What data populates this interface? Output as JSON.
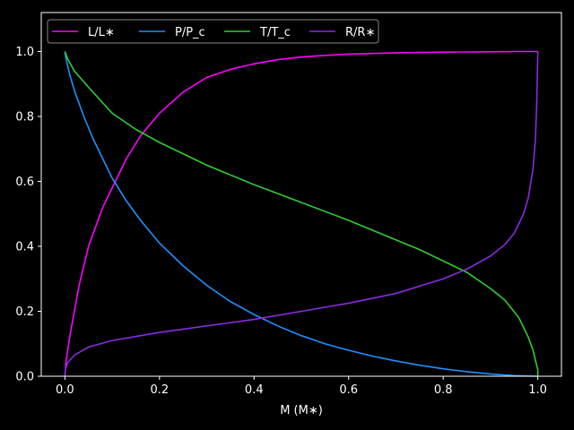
{
  "chart_data": {
    "type": "line",
    "title": "",
    "xlabel": "M (M∗)",
    "ylabel": "",
    "xlim": [
      -0.05,
      1.05
    ],
    "ylim": [
      0.0,
      1.12
    ],
    "xticks": [
      "0.0",
      "0.2",
      "0.4",
      "0.6",
      "0.8",
      "1.0"
    ],
    "yticks": [
      "0.0",
      "0.2",
      "0.4",
      "0.6",
      "0.8",
      "1.0"
    ],
    "grid": false,
    "legend_position": "top-left",
    "background": "#000000",
    "series": [
      {
        "name": "L/L∗",
        "color": "#ff00ff",
        "x": [
          0.0,
          0.002,
          0.01,
          0.03,
          0.05,
          0.08,
          0.1,
          0.13,
          0.16,
          0.2,
          0.25,
          0.3,
          0.35,
          0.4,
          0.45,
          0.5,
          0.55,
          0.6,
          0.7,
          0.8,
          0.9,
          0.95,
          0.98,
          1.0,
          1.0
        ],
        "y": [
          0.0,
          0.04,
          0.12,
          0.28,
          0.4,
          0.52,
          0.58,
          0.67,
          0.74,
          0.81,
          0.875,
          0.92,
          0.945,
          0.962,
          0.975,
          0.983,
          0.988,
          0.992,
          0.996,
          0.998,
          0.999,
          1.0,
          1.0,
          1.0,
          1.0
        ]
      },
      {
        "name": "P/P_c",
        "color": "#1e90ff",
        "x": [
          0.0,
          0.002,
          0.01,
          0.02,
          0.04,
          0.06,
          0.08,
          0.1,
          0.13,
          0.16,
          0.2,
          0.25,
          0.3,
          0.35,
          0.4,
          0.45,
          0.5,
          0.55,
          0.6,
          0.65,
          0.7,
          0.75,
          0.8,
          0.85,
          0.9,
          0.95,
          1.0
        ],
        "y": [
          1.0,
          0.98,
          0.93,
          0.88,
          0.8,
          0.73,
          0.67,
          0.61,
          0.54,
          0.48,
          0.41,
          0.34,
          0.28,
          0.23,
          0.19,
          0.155,
          0.125,
          0.1,
          0.08,
          0.062,
          0.047,
          0.034,
          0.023,
          0.014,
          0.007,
          0.002,
          0.0
        ]
      },
      {
        "name": "T/T_c",
        "color": "#32cd32",
        "x": [
          0.0,
          0.005,
          0.02,
          0.05,
          0.1,
          0.15,
          0.2,
          0.3,
          0.4,
          0.5,
          0.6,
          0.7,
          0.75,
          0.8,
          0.85,
          0.9,
          0.93,
          0.96,
          0.98,
          0.99,
          0.995,
          1.0,
          1.0
        ],
        "y": [
          1.0,
          0.98,
          0.94,
          0.89,
          0.81,
          0.76,
          0.72,
          0.65,
          0.59,
          0.535,
          0.48,
          0.42,
          0.39,
          0.355,
          0.32,
          0.27,
          0.235,
          0.18,
          0.12,
          0.08,
          0.05,
          0.02,
          0.0
        ]
      },
      {
        "name": "R/R∗",
        "color": "#8a2be2",
        "x": [
          0.0,
          0.001,
          0.005,
          0.02,
          0.05,
          0.1,
          0.2,
          0.3,
          0.4,
          0.5,
          0.6,
          0.7,
          0.8,
          0.85,
          0.9,
          0.93,
          0.95,
          0.97,
          0.98,
          0.99,
          0.995,
          0.998,
          1.0
        ],
        "y": [
          0.0,
          0.02,
          0.04,
          0.065,
          0.09,
          0.11,
          0.135,
          0.155,
          0.175,
          0.2,
          0.225,
          0.255,
          0.3,
          0.33,
          0.37,
          0.405,
          0.44,
          0.5,
          0.55,
          0.64,
          0.73,
          0.85,
          1.0
        ]
      }
    ]
  }
}
